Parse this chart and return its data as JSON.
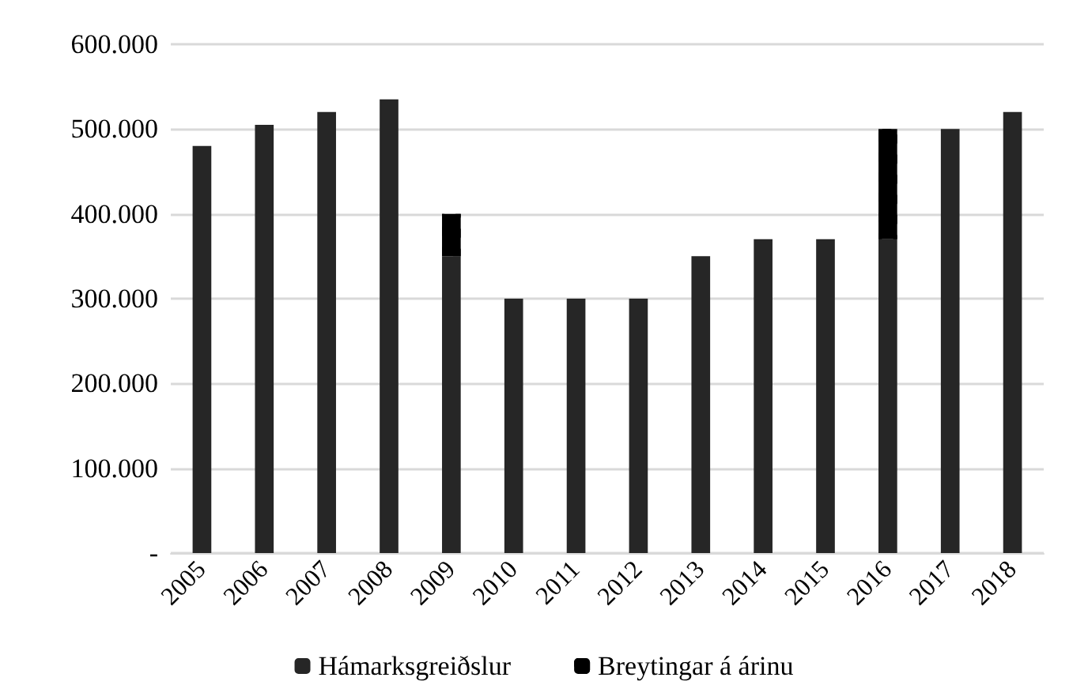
{
  "chart_data": {
    "type": "bar",
    "stacked": true,
    "categories": [
      "2005",
      "2006",
      "2007",
      "2008",
      "2009",
      "2010",
      "2011",
      "2012",
      "2013",
      "2014",
      "2015",
      "2016",
      "2017",
      "2018"
    ],
    "series": [
      {
        "name": "Hámarksgreiðslur",
        "color": "#262626",
        "values": [
          480000,
          505000,
          520000,
          535000,
          350000,
          300000,
          300000,
          300000,
          350000,
          370000,
          370000,
          370000,
          500000,
          520000
        ]
      },
      {
        "name": "Breytingar á árinu",
        "color": "#000000",
        "values": [
          null,
          null,
          null,
          null,
          50000,
          null,
          null,
          null,
          null,
          null,
          null,
          130000,
          null,
          null
        ]
      }
    ],
    "ylim": [
      0,
      600000
    ],
    "yticks": [
      {
        "value": 0,
        "label": "-"
      },
      {
        "value": 100000,
        "label": "100.000"
      },
      {
        "value": 200000,
        "label": "200.000"
      },
      {
        "value": 300000,
        "label": "300.000"
      },
      {
        "value": 400000,
        "label": "400.000"
      },
      {
        "value": 500000,
        "label": "500.000"
      },
      {
        "value": 600000,
        "label": "600.000"
      }
    ],
    "grid": "y",
    "legend": "bottom"
  }
}
